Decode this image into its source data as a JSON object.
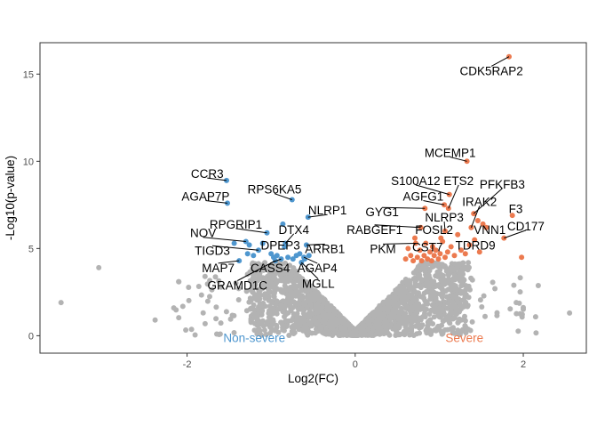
{
  "chart_data": {
    "type": "scatter",
    "title": "",
    "xlabel": "Log2(FC)",
    "ylabel": "-Log10(p-value)",
    "xlim": [
      -3.75,
      2.75
    ],
    "ylim": [
      -1.0,
      16.8
    ],
    "x_ticks": [
      -2,
      0,
      2
    ],
    "y_ticks": [
      0,
      5,
      10,
      15
    ],
    "grid": false,
    "legend": "none",
    "colors": {
      "non_severe": "#4f97cf",
      "severe": "#ec7a4f",
      "ns": "#b3b3b3"
    },
    "group_labels": [
      {
        "text": "Non-severe",
        "x": -1.2,
        "y": -0.1,
        "color": "#4f97cf"
      },
      {
        "text": "Severe",
        "x": 1.3,
        "y": -0.1,
        "color": "#ec7a4f"
      }
    ],
    "labeled_genes": [
      {
        "gene": "CDK5RAP2",
        "x": 1.83,
        "y": 16.0,
        "lx": 1.62,
        "ly": 15.2,
        "group": "severe"
      },
      {
        "gene": "MCEMP1",
        "x": 1.33,
        "y": 10.0,
        "lx": 1.13,
        "ly": 10.5,
        "group": "severe"
      },
      {
        "gene": "ETS2",
        "x": 1.11,
        "y": 7.3,
        "lx": 1.23,
        "ly": 8.9,
        "group": "severe"
      },
      {
        "gene": "PFKFB3",
        "x": 1.41,
        "y": 7.0,
        "lx": 1.75,
        "ly": 8.7,
        "group": "severe"
      },
      {
        "gene": "S100A12",
        "x": 1.12,
        "y": 8.1,
        "lx": 0.72,
        "ly": 8.9,
        "group": "severe"
      },
      {
        "gene": "AGFG1",
        "x": 1.06,
        "y": 7.5,
        "lx": 0.81,
        "ly": 8.0,
        "group": "severe"
      },
      {
        "gene": "IRAK2",
        "x": 1.38,
        "y": 6.2,
        "lx": 1.48,
        "ly": 7.7,
        "group": "severe"
      },
      {
        "gene": "F3",
        "x": 1.87,
        "y": 6.9,
        "lx": 1.91,
        "ly": 7.3,
        "group": "severe"
      },
      {
        "gene": "GYG1",
        "x": 0.83,
        "y": 7.3,
        "lx": 0.32,
        "ly": 7.1,
        "group": "severe"
      },
      {
        "gene": "NLRP3",
        "x": 1.07,
        "y": 6.0,
        "lx": 1.06,
        "ly": 6.8,
        "group": "severe"
      },
      {
        "gene": "CD177",
        "x": 1.77,
        "y": 5.6,
        "lx": 2.03,
        "ly": 6.3,
        "group": "severe"
      },
      {
        "gene": "RABGEF1",
        "x": 0.78,
        "y": 6.2,
        "lx": 0.23,
        "ly": 6.1,
        "group": "severe"
      },
      {
        "gene": "FOSL2",
        "x": 1.02,
        "y": 5.6,
        "lx": 0.94,
        "ly": 6.1,
        "group": "severe"
      },
      {
        "gene": "VNN1",
        "x": 1.56,
        "y": 6.2,
        "lx": 1.6,
        "ly": 6.1,
        "group": "severe"
      },
      {
        "gene": "PKM",
        "x": 0.72,
        "y": 5.3,
        "lx": 0.33,
        "ly": 5.0,
        "group": "severe"
      },
      {
        "gene": "CST7",
        "x": 0.92,
        "y": 5.1,
        "lx": 0.86,
        "ly": 5.1,
        "group": "severe"
      },
      {
        "gene": "TDRD9",
        "x": 1.42,
        "y": 5.5,
        "lx": 1.43,
        "ly": 5.2,
        "group": "severe"
      },
      {
        "gene": "CCR3",
        "x": -1.53,
        "y": 8.9,
        "lx": -1.76,
        "ly": 9.3,
        "group": "non_severe"
      },
      {
        "gene": "AGAP7P",
        "x": -1.52,
        "y": 7.6,
        "lx": -1.78,
        "ly": 8.0,
        "group": "non_severe"
      },
      {
        "gene": "RPS6KA5",
        "x": -0.75,
        "y": 7.8,
        "lx": -0.96,
        "ly": 8.4,
        "group": "non_severe"
      },
      {
        "gene": "NLRP1",
        "x": -0.56,
        "y": 6.8,
        "lx": -0.33,
        "ly": 7.2,
        "group": "non_severe"
      },
      {
        "gene": "RPGRIP1",
        "x": -1.05,
        "y": 5.9,
        "lx": -1.42,
        "ly": 6.4,
        "group": "non_severe"
      },
      {
        "gene": "DTX4",
        "x": -0.83,
        "y": 5.3,
        "lx": -0.73,
        "ly": 6.1,
        "group": "non_severe"
      },
      {
        "gene": "NOV",
        "x": -1.3,
        "y": 5.4,
        "lx": -1.81,
        "ly": 5.9,
        "group": "non_severe"
      },
      {
        "gene": "TIGD3",
        "x": -1.15,
        "y": 4.9,
        "lx": -1.7,
        "ly": 4.9,
        "group": "non_severe"
      },
      {
        "gene": "DPEP3",
        "x": -0.84,
        "y": 5.1,
        "lx": -0.89,
        "ly": 5.2,
        "group": "non_severe"
      },
      {
        "gene": "ARRB1",
        "x": -0.58,
        "y": 5.2,
        "lx": -0.36,
        "ly": 5.0,
        "group": "non_severe"
      },
      {
        "gene": "MAP7",
        "x": -1.38,
        "y": 4.3,
        "lx": -1.63,
        "ly": 3.9,
        "group": "non_severe"
      },
      {
        "gene": "CASS4",
        "x": -0.88,
        "y": 4.4,
        "lx": -1.01,
        "ly": 3.9,
        "group": "non_severe"
      },
      {
        "gene": "AGAP4",
        "x": -0.61,
        "y": 4.5,
        "lx": -0.45,
        "ly": 3.9,
        "group": "non_severe"
      },
      {
        "gene": "MGLL",
        "x": -0.64,
        "y": 4.2,
        "lx": -0.44,
        "ly": 3.0,
        "group": "non_severe"
      },
      {
        "gene": "GRAMD1C",
        "x": -0.95,
        "y": 4.3,
        "lx": -1.4,
        "ly": 2.9,
        "group": "non_severe"
      }
    ],
    "unlabeled_significant": [
      {
        "x": -1.44,
        "y": 5.3,
        "group": "non_severe"
      },
      {
        "x": -1.28,
        "y": 4.7,
        "group": "non_severe"
      },
      {
        "x": -1.26,
        "y": 5.2,
        "group": "non_severe"
      },
      {
        "x": -1.21,
        "y": 4.6,
        "group": "non_severe"
      },
      {
        "x": -1.1,
        "y": 5.3,
        "group": "non_severe"
      },
      {
        "x": -1.0,
        "y": 4.7,
        "group": "non_severe"
      },
      {
        "x": -0.97,
        "y": 4.5,
        "group": "non_severe"
      },
      {
        "x": -0.93,
        "y": 4.6,
        "group": "non_severe"
      },
      {
        "x": -0.86,
        "y": 6.4,
        "group": "non_severe"
      },
      {
        "x": -0.8,
        "y": 4.5,
        "group": "non_severe"
      },
      {
        "x": -0.74,
        "y": 4.4,
        "group": "non_severe"
      },
      {
        "x": -0.7,
        "y": 4.6,
        "group": "non_severe"
      },
      {
        "x": -0.66,
        "y": 4.7,
        "group": "non_severe"
      },
      {
        "x": -0.6,
        "y": 4.4,
        "group": "non_severe"
      },
      {
        "x": -0.55,
        "y": 4.6,
        "group": "non_severe"
      },
      {
        "x": 0.6,
        "y": 4.4,
        "group": "severe"
      },
      {
        "x": 0.63,
        "y": 5.0,
        "group": "severe"
      },
      {
        "x": 0.66,
        "y": 4.6,
        "group": "severe"
      },
      {
        "x": 0.69,
        "y": 4.3,
        "group": "severe"
      },
      {
        "x": 0.71,
        "y": 5.6,
        "group": "severe"
      },
      {
        "x": 0.74,
        "y": 4.5,
        "group": "severe"
      },
      {
        "x": 0.77,
        "y": 4.9,
        "group": "severe"
      },
      {
        "x": 0.79,
        "y": 4.3,
        "group": "severe"
      },
      {
        "x": 0.82,
        "y": 4.6,
        "group": "severe"
      },
      {
        "x": 0.84,
        "y": 5.3,
        "group": "severe"
      },
      {
        "x": 0.86,
        "y": 4.4,
        "group": "severe"
      },
      {
        "x": 0.89,
        "y": 4.8,
        "group": "severe"
      },
      {
        "x": 0.91,
        "y": 4.3,
        "group": "severe"
      },
      {
        "x": 0.94,
        "y": 4.6,
        "group": "severe"
      },
      {
        "x": 0.96,
        "y": 4.9,
        "group": "severe"
      },
      {
        "x": 0.99,
        "y": 4.4,
        "group": "severe"
      },
      {
        "x": 1.01,
        "y": 4.7,
        "group": "severe"
      },
      {
        "x": 1.04,
        "y": 5.4,
        "group": "severe"
      },
      {
        "x": 1.07,
        "y": 4.5,
        "group": "severe"
      },
      {
        "x": 1.1,
        "y": 4.8,
        "group": "severe"
      },
      {
        "x": 1.14,
        "y": 5.1,
        "group": "severe"
      },
      {
        "x": 1.18,
        "y": 4.6,
        "group": "severe"
      },
      {
        "x": 1.22,
        "y": 5.8,
        "group": "severe"
      },
      {
        "x": 1.26,
        "y": 4.9,
        "group": "severe"
      },
      {
        "x": 1.31,
        "y": 4.7,
        "group": "severe"
      },
      {
        "x": 1.36,
        "y": 5.2,
        "group": "severe"
      },
      {
        "x": 1.46,
        "y": 6.6,
        "group": "severe"
      },
      {
        "x": 1.48,
        "y": 4.8,
        "group": "severe"
      },
      {
        "x": 1.52,
        "y": 6.4,
        "group": "severe"
      },
      {
        "x": 1.98,
        "y": 4.5,
        "group": "severe"
      }
    ],
    "outlier_ns_points": [
      {
        "x": -3.5,
        "y": 1.9
      },
      {
        "x": -3.05,
        "y": 3.9
      },
      {
        "x": -2.38,
        "y": 0.9
      },
      {
        "x": 2.55,
        "y": 1.3
      }
    ]
  }
}
